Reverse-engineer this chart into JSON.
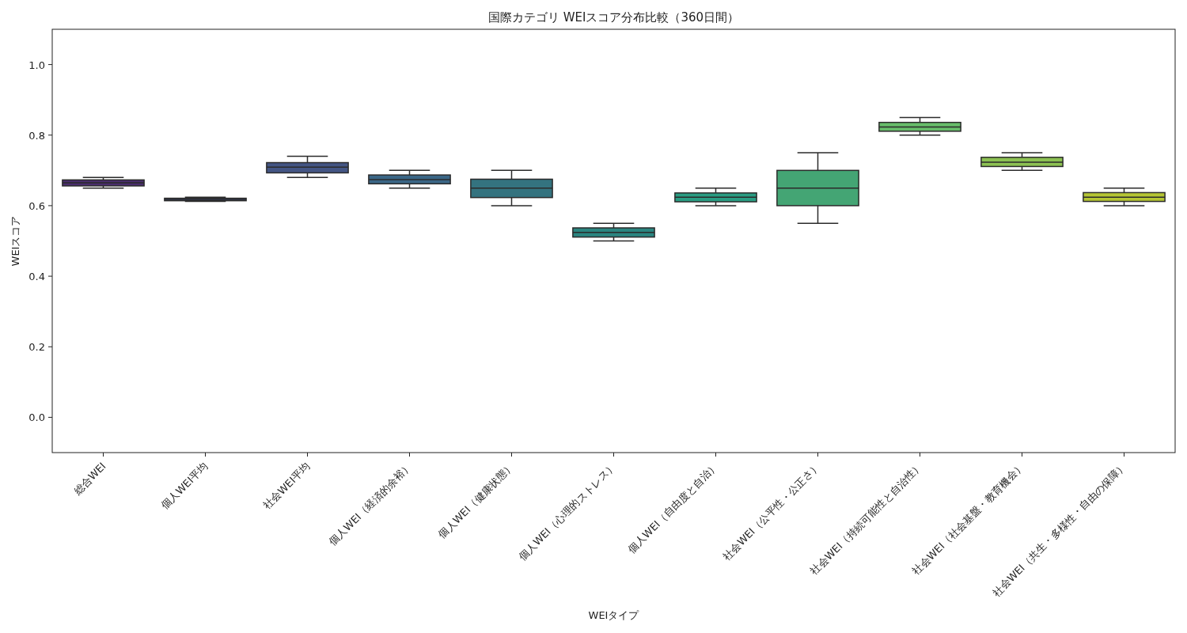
{
  "chart_data": {
    "type": "box",
    "title": "国際カテゴリ WEIスコア分布比較（360日間）",
    "xlabel": "WEIタイプ",
    "ylabel": "WEIスコア",
    "categories": [
      "総合WEI",
      "個人WEI平均",
      "社会WEI平均",
      "個人WEI（経済的余裕）",
      "個人WEI（健康状態）",
      "個人WEI（心理的ストレス）",
      "個人WEI（自由度と自治）",
      "社会WEI（公平性・公正さ）",
      "社会WEI（持続可能性と自治性）",
      "社会WEI（社会基盤・教育機会）",
      "社会WEI（共生・多様性・自由の保障）"
    ],
    "boxes": [
      {
        "low": 0.65,
        "q1": 0.656,
        "median": 0.665,
        "q3": 0.673,
        "high": 0.68
      },
      {
        "low": 0.612,
        "q1": 0.614,
        "median": 0.618,
        "q3": 0.621,
        "high": 0.624
      },
      {
        "low": 0.68,
        "q1": 0.693,
        "median": 0.709,
        "q3": 0.722,
        "high": 0.74
      },
      {
        "low": 0.65,
        "q1": 0.662,
        "median": 0.674,
        "q3": 0.687,
        "high": 0.7
      },
      {
        "low": 0.6,
        "q1": 0.623,
        "median": 0.65,
        "q3": 0.675,
        "high": 0.7
      },
      {
        "low": 0.5,
        "q1": 0.511,
        "median": 0.524,
        "q3": 0.537,
        "high": 0.55
      },
      {
        "low": 0.6,
        "q1": 0.611,
        "median": 0.624,
        "q3": 0.636,
        "high": 0.65
      },
      {
        "low": 0.55,
        "q1": 0.6,
        "median": 0.65,
        "q3": 0.7,
        "high": 0.75
      },
      {
        "low": 0.8,
        "q1": 0.811,
        "median": 0.823,
        "q3": 0.836,
        "high": 0.85
      },
      {
        "low": 0.7,
        "q1": 0.711,
        "median": 0.723,
        "q3": 0.737,
        "high": 0.75
      },
      {
        "low": 0.6,
        "q1": 0.612,
        "median": 0.624,
        "q3": 0.637,
        "high": 0.65
      }
    ],
    "colors": [
      "#4a2e6e",
      "#404a80",
      "#445584",
      "#3a6686",
      "#34737f",
      "#2b8580",
      "#2a9d83",
      "#44a574",
      "#67bd6a",
      "#8cc152",
      "#b5c535"
    ],
    "ylim": [
      -0.1,
      1.1
    ],
    "yticks": [
      {
        "value": 0,
        "label": "0.0"
      },
      {
        "value": 0.2,
        "label": "0.2"
      },
      {
        "value": 0.4,
        "label": "0.4"
      },
      {
        "value": 0.6,
        "label": "0.6"
      },
      {
        "value": 0.8,
        "label": "0.8"
      },
      {
        "value": 1,
        "label": "1.0"
      }
    ]
  }
}
